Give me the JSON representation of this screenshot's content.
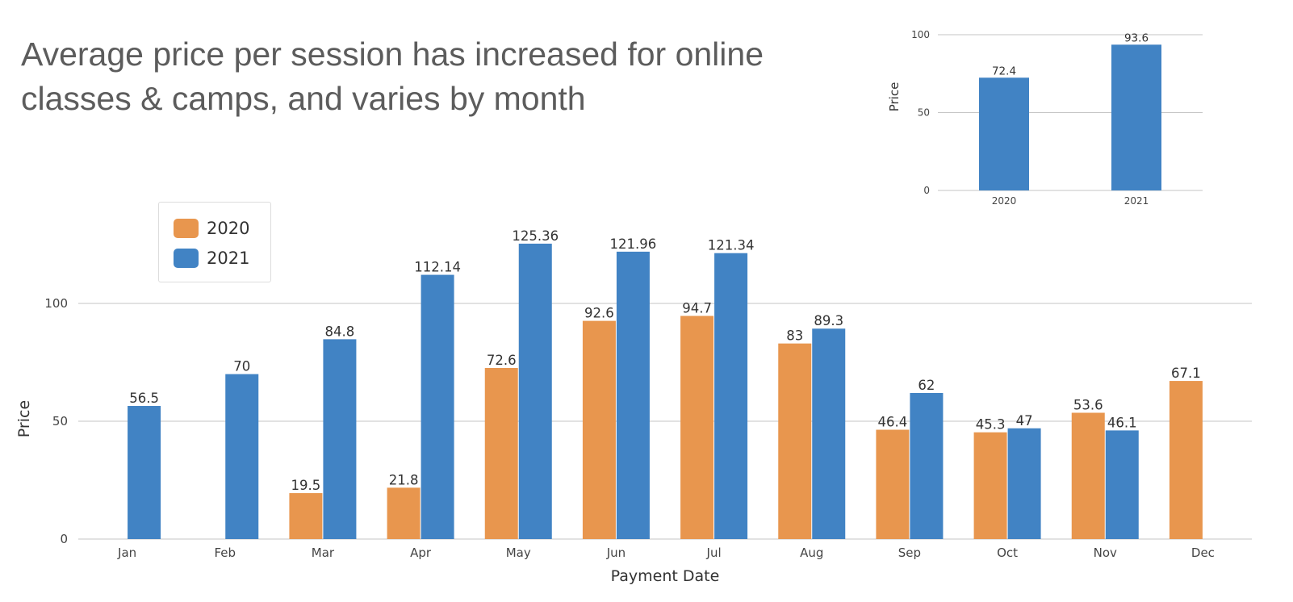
{
  "title": "Average price per session has increased for online classes & camps, and varies by month",
  "legend": {
    "items": [
      {
        "label": "2020",
        "color": "#E8964E"
      },
      {
        "label": "2021",
        "color": "#4183C4"
      }
    ]
  },
  "chart_data": [
    {
      "type": "bar",
      "xlabel": "Payment Date",
      "ylabel": "Price",
      "ylim": [
        0,
        150
      ],
      "yticks": [
        0,
        50,
        100
      ],
      "grid": true,
      "legend_position": "top-left",
      "categories": [
        "Jan",
        "Feb",
        "Mar",
        "Apr",
        "May",
        "Jun",
        "Jul",
        "Aug",
        "Sep",
        "Oct",
        "Nov",
        "Dec"
      ],
      "series": [
        {
          "name": "2020",
          "color": "#E8964E",
          "values": [
            null,
            null,
            19.5,
            21.8,
            72.6,
            92.6,
            94.7,
            83,
            46.4,
            45.3,
            53.6,
            67.1
          ]
        },
        {
          "name": "2021",
          "color": "#4183C4",
          "values": [
            56.5,
            70,
            84.8,
            112.14,
            125.36,
            121.96,
            121.34,
            89.3,
            62,
            47,
            46.1,
            null
          ]
        }
      ]
    },
    {
      "type": "bar",
      "xlabel": "",
      "ylabel": "Price",
      "ylim": [
        0,
        100
      ],
      "yticks": [
        0,
        50,
        100
      ],
      "grid": true,
      "categories": [
        "2020",
        "2021"
      ],
      "values": [
        72.4,
        93.6
      ],
      "color": "#4183C4"
    }
  ]
}
